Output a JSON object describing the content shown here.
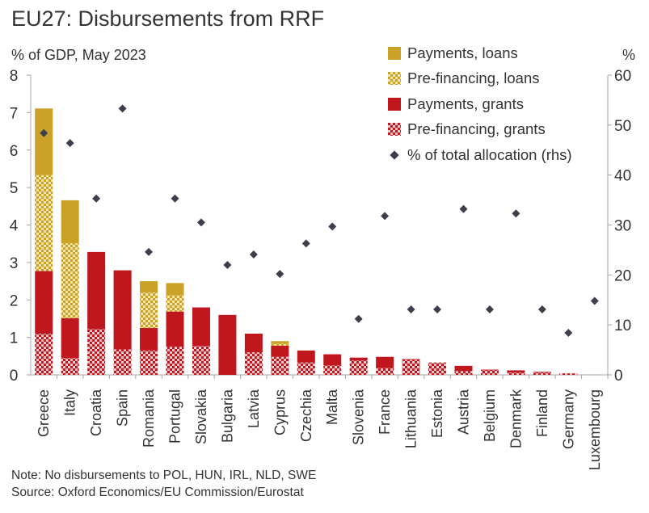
{
  "title": "EU27: Disbursements from RRF",
  "left_axis_label": "% of GDP, May 2023",
  "right_axis_label": "%",
  "notes": [
    "Note: No disbursements to POL, HUN, IRL, NLD, SWE",
    "Source: Oxford Economics/EU Commission/Eurostat"
  ],
  "colors": {
    "loans": "#c9a227",
    "grants": "#c0171f",
    "marker": "#3d3f4c",
    "axis": "#a6a6a6"
  },
  "chart_data": {
    "type": "bar",
    "stacked": true,
    "categories": [
      "Greece",
      "Italy",
      "Croatia",
      "Spain",
      "Romania",
      "Portugal",
      "Slovakia",
      "Bulgaria",
      "Latvia",
      "Cyprus",
      "Czechia",
      "Malta",
      "Slovenia",
      "France",
      "Lithuania",
      "Estonia",
      "Austria",
      "Belgium",
      "Denmark",
      "Finland",
      "Germany",
      "Luxembourg"
    ],
    "series": [
      {
        "name": "Pre-financing, grants",
        "pattern": "grants",
        "values": [
          1.1,
          0.45,
          1.22,
          0.68,
          0.65,
          0.75,
          0.77,
          0,
          0.6,
          0.48,
          0.33,
          0.25,
          0.38,
          0.18,
          0.4,
          0.33,
          0.1,
          0.12,
          0.06,
          0.06,
          0.04,
          0
        ]
      },
      {
        "name": "Payments, grants",
        "pattern": "grants",
        "values": [
          1.67,
          1.06,
          2.06,
          2.11,
          0.6,
          0.94,
          1.03,
          1.6,
          0.5,
          0.3,
          0.32,
          0.3,
          0.08,
          0.3,
          0.02,
          0,
          0.14,
          0.02,
          0.06,
          0.02,
          0,
          0
        ]
      },
      {
        "name": "Pre-financing, loans",
        "pattern": "loans",
        "values": [
          2.56,
          2,
          0,
          0,
          0.95,
          0.43,
          0,
          0,
          0,
          0.05,
          0,
          0,
          0,
          0,
          0,
          0,
          0,
          0,
          0,
          0,
          0,
          0
        ]
      },
      {
        "name": "Payments, loans",
        "pattern": "loans",
        "values": [
          1.78,
          1.15,
          0,
          0,
          0.3,
          0.33,
          0,
          0,
          0,
          0.07,
          0,
          0,
          0,
          0,
          0,
          0,
          0,
          0,
          0,
          0,
          0,
          0
        ]
      }
    ],
    "rhs_series": {
      "name": "% of total allocation (rhs)",
      "type": "scatter",
      "values": [
        48.4,
        46.4,
        35.3,
        53.3,
        24.6,
        35.3,
        30.5,
        22,
        24.1,
        20.2,
        26.3,
        29.7,
        11.2,
        31.8,
        13.1,
        13.1,
        33.2,
        13.1,
        32.3,
        13.1,
        8.4,
        14.8
      ]
    },
    "left_axis": {
      "label": "% of GDP, May 2023",
      "min": 0,
      "max": 8,
      "ticks": [
        0,
        1,
        2,
        3,
        4,
        5,
        6,
        7,
        8
      ]
    },
    "right_axis": {
      "label": "%",
      "min": 0,
      "max": 60,
      "ticks": [
        0,
        10,
        20,
        30,
        40,
        50,
        60
      ]
    },
    "legend_position": "top-right"
  },
  "legend": [
    {
      "label": "Payments, loans",
      "kind": "solid-loans"
    },
    {
      "label": "Pre-financing, loans",
      "kind": "pattern-loans"
    },
    {
      "label": "Payments, grants",
      "kind": "solid-grants"
    },
    {
      "label": "Pre-financing, grants",
      "kind": "pattern-grants"
    },
    {
      "label": "% of total allocation (rhs)",
      "kind": "diamond"
    }
  ]
}
